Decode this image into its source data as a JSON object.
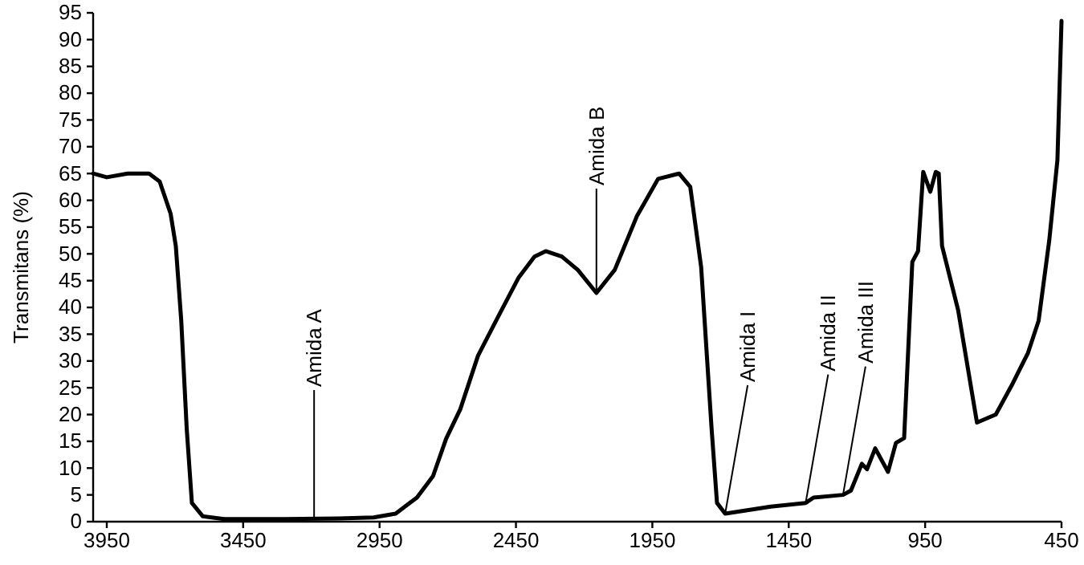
{
  "chart_data": {
    "type": "line",
    "ylabel": "Transmitans (%)",
    "x": [
      4000,
      3950,
      3873,
      3795,
      3756,
      3716,
      3697,
      3677,
      3657,
      3638,
      3598,
      3520,
      3300,
      3100,
      2972,
      2891,
      2813,
      2754,
      2706,
      2654,
      2589,
      2518,
      2441,
      2382,
      2341,
      2282,
      2223,
      2155,
      2088,
      2007,
      1929,
      1852,
      1811,
      1771,
      1733,
      1713,
      1683,
      1516,
      1388,
      1359,
      1251,
      1222,
      1182,
      1163,
      1133,
      1086,
      1057,
      1027,
      997,
      976,
      957,
      931,
      911,
      900,
      888,
      829,
      760,
      691,
      632,
      573,
      534,
      495,
      465,
      450
    ],
    "series": [
      {
        "color": "#000000",
        "values": [
          65,
          64.3,
          65,
          65,
          63.5,
          57.5,
          51.5,
          37.5,
          17.4,
          3.5,
          1,
          0.5,
          0.5,
          0.6,
          0.8,
          1.5,
          4.5,
          8.5,
          15.5,
          21,
          31,
          38,
          45.5,
          49.5,
          50.5,
          49.5,
          47,
          42.7,
          47,
          57,
          64,
          65,
          62.5,
          47.5,
          17.5,
          3.5,
          1.5,
          2.8,
          3.5,
          4.5,
          5,
          5.8,
          10.8,
          9.8,
          13.7,
          9.3,
          14.7,
          15.6,
          48.5,
          50.5,
          65.3,
          61.6,
          65.3,
          65,
          51.5,
          39.5,
          18.5,
          20,
          25.5,
          31.5,
          37.5,
          52.5,
          67.5,
          93.5
        ]
      }
    ],
    "xlim": [
      4000,
      450
    ],
    "xticks": [
      3950,
      3450,
      2950,
      2450,
      1950,
      1450,
      950,
      450
    ],
    "ylim": [
      0,
      95
    ],
    "yticks": [
      0,
      5,
      10,
      15,
      20,
      25,
      30,
      35,
      40,
      45,
      50,
      55,
      60,
      65,
      70,
      75,
      80,
      85,
      90,
      95
    ],
    "grid": false,
    "marker": "none",
    "line_style": "solid",
    "annotations": [
      {
        "text": "Amida A",
        "x": 3190,
        "y": 0.6
      },
      {
        "text": "Amida B",
        "x": 2155,
        "y": 42.7
      },
      {
        "text": "Amida I",
        "x": 1683,
        "y": 1.5
      },
      {
        "text": "Amida II",
        "x": 1388,
        "y": 3.5
      },
      {
        "text": "Amida III",
        "x": 1251,
        "y": 5
      }
    ]
  }
}
